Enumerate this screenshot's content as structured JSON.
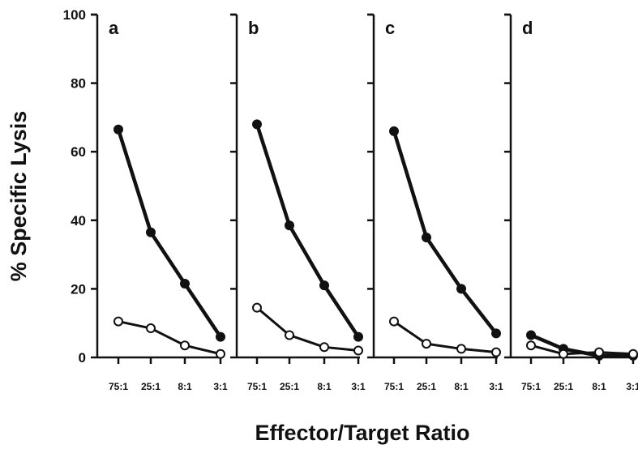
{
  "chart_data": {
    "type": "line",
    "ylabel": "% Specific Lysis",
    "xlabel": "Effector/Target Ratio",
    "ylim": [
      0,
      100
    ],
    "yticks": [
      0,
      20,
      40,
      60,
      80,
      100
    ],
    "categories": [
      "75:1",
      "25:1",
      "8:1",
      "3:1"
    ],
    "legend": "none",
    "grid": false,
    "panels": [
      {
        "label": "a",
        "series": [
          {
            "marker": "filled-circle",
            "values": [
              66.5,
              36.5,
              21.5,
              6.0
            ]
          },
          {
            "marker": "open-circle",
            "values": [
              10.5,
              8.5,
              3.5,
              1.0
            ]
          }
        ]
      },
      {
        "label": "b",
        "series": [
          {
            "marker": "filled-circle",
            "values": [
              68.0,
              38.5,
              21.0,
              6.0
            ]
          },
          {
            "marker": "open-circle",
            "values": [
              14.5,
              6.5,
              3.0,
              2.0
            ]
          }
        ]
      },
      {
        "label": "c",
        "series": [
          {
            "marker": "filled-circle",
            "values": [
              66.0,
              35.0,
              20.0,
              7.0
            ]
          },
          {
            "marker": "open-circle",
            "values": [
              10.5,
              4.0,
              2.5,
              1.5
            ]
          }
        ]
      },
      {
        "label": "d",
        "series": [
          {
            "marker": "filled-circle",
            "values": [
              6.5,
              2.5,
              0.5,
              0.5
            ]
          },
          {
            "marker": "open-circle",
            "values": [
              3.5,
              1.0,
              1.5,
              1.0
            ]
          }
        ]
      }
    ]
  }
}
